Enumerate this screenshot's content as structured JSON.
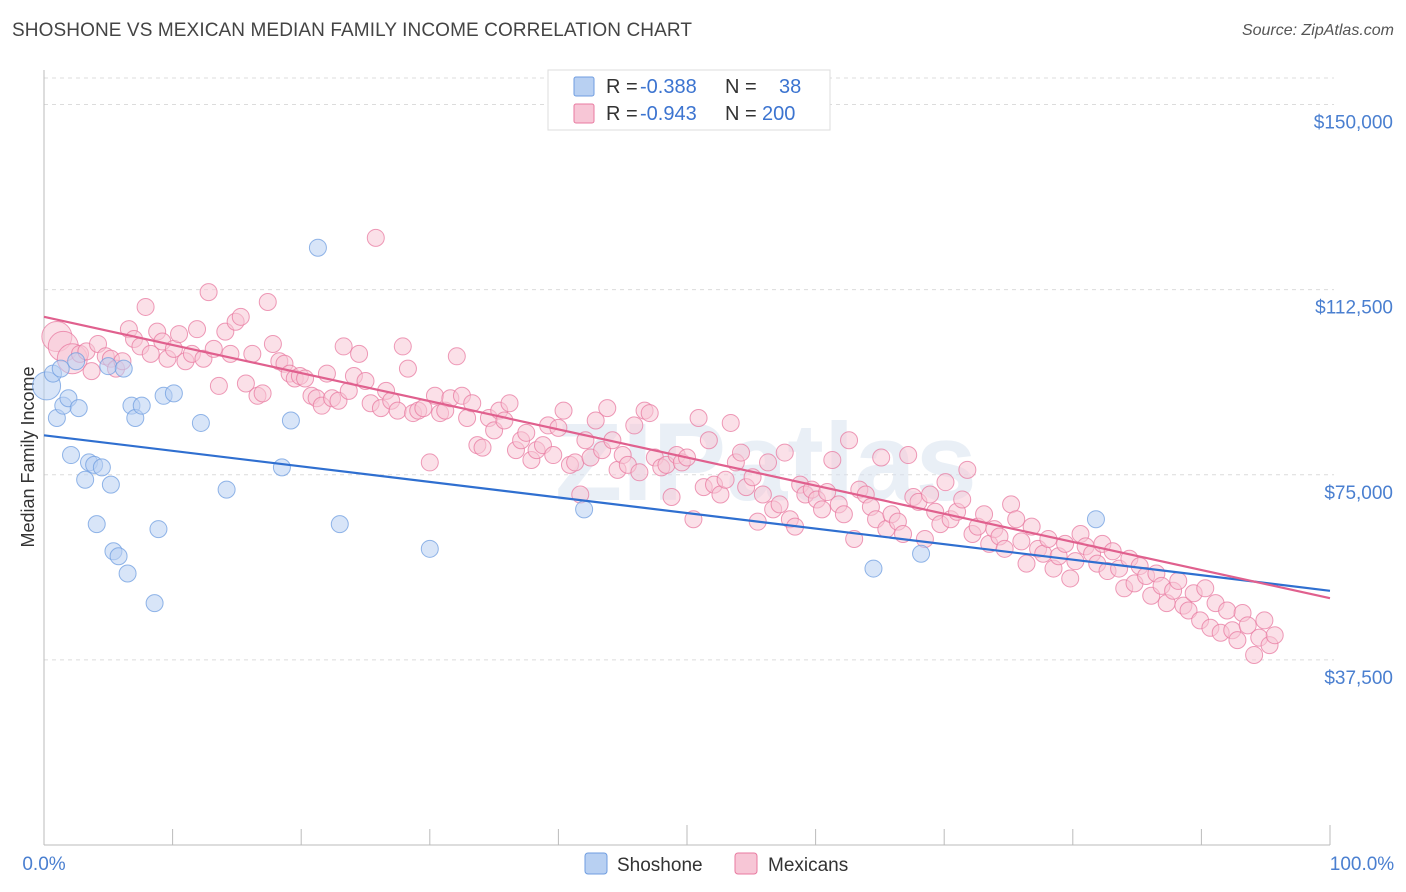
{
  "title": "SHOSHONE VS MEXICAN MEDIAN FAMILY INCOME CORRELATION CHART",
  "source": "Source: ZipAtlas.com",
  "watermark": "ZIPatlas",
  "chart_data": {
    "type": "scatter",
    "ylabel": "Median Family Income",
    "xlim": [
      0,
      100
    ],
    "ylim": [
      0,
      157000
    ],
    "x_tick_labels": [
      "0.0%",
      "100.0%"
    ],
    "y_ticks": [
      {
        "value": 37500,
        "label": "$37,500"
      },
      {
        "value": 75000,
        "label": "$75,000"
      },
      {
        "value": 112500,
        "label": "$112,500"
      },
      {
        "value": 150000,
        "label": "$150,000"
      }
    ],
    "grid": true,
    "legend_position": "top-center",
    "series": [
      {
        "name": "Shoshone",
        "color": "#6f9de0",
        "fill": "#b8d0f2",
        "r_label": "R =",
        "r_value": "-0.388",
        "n_label": "N =",
        "n_value": "38",
        "trend": [
          [
            0,
            83000
          ],
          [
            100,
            51500
          ]
        ],
        "points": [
          [
            0.2,
            93000
          ],
          [
            0.7,
            95500
          ],
          [
            1.0,
            86500
          ],
          [
            1.3,
            96500
          ],
          [
            1.5,
            89000
          ],
          [
            1.9,
            90500
          ],
          [
            2.1,
            79000
          ],
          [
            2.5,
            98000
          ],
          [
            2.7,
            88500
          ],
          [
            3.2,
            74000
          ],
          [
            3.5,
            77500
          ],
          [
            3.9,
            77000
          ],
          [
            4.1,
            65000
          ],
          [
            4.5,
            76500
          ],
          [
            5.0,
            97000
          ],
          [
            5.2,
            73000
          ],
          [
            5.4,
            59500
          ],
          [
            5.8,
            58500
          ],
          [
            6.2,
            96500
          ],
          [
            6.5,
            55000
          ],
          [
            6.8,
            89000
          ],
          [
            7.1,
            86500
          ],
          [
            7.6,
            89000
          ],
          [
            8.6,
            49000
          ],
          [
            8.9,
            64000
          ],
          [
            9.3,
            91000
          ],
          [
            10.1,
            91500
          ],
          [
            12.2,
            85500
          ],
          [
            14.2,
            72000
          ],
          [
            18.5,
            76500
          ],
          [
            19.2,
            86000
          ],
          [
            21.3,
            121000
          ],
          [
            23.0,
            65000
          ],
          [
            30.0,
            60000
          ],
          [
            42.0,
            68000
          ],
          [
            64.5,
            56000
          ],
          [
            68.2,
            59000
          ],
          [
            81.8,
            66000
          ]
        ]
      },
      {
        "name": "Mexicans",
        "color": "#e87aa0",
        "fill": "#f7c6d6",
        "r_label": "R =",
        "r_value": "-0.943",
        "n_label": "N =",
        "n_value": "200",
        "trend": [
          [
            0,
            107000
          ],
          [
            100,
            50000
          ]
        ],
        "points": [
          [
            1.0,
            103000
          ],
          [
            1.5,
            101000
          ],
          [
            2.2,
            98500
          ],
          [
            2.8,
            99500
          ],
          [
            3.3,
            100000
          ],
          [
            3.7,
            96000
          ],
          [
            4.2,
            101500
          ],
          [
            4.8,
            99000
          ],
          [
            5.2,
            98500
          ],
          [
            5.6,
            96500
          ],
          [
            6.1,
            98000
          ],
          [
            6.6,
            104500
          ],
          [
            7.0,
            102500
          ],
          [
            7.5,
            101000
          ],
          [
            7.9,
            109000
          ],
          [
            8.3,
            99500
          ],
          [
            8.8,
            104000
          ],
          [
            9.2,
            102000
          ],
          [
            9.6,
            98500
          ],
          [
            10.1,
            100500
          ],
          [
            10.5,
            103500
          ],
          [
            11.0,
            98000
          ],
          [
            11.5,
            99500
          ],
          [
            11.9,
            104500
          ],
          [
            12.4,
            98500
          ],
          [
            12.8,
            112000
          ],
          [
            13.2,
            100500
          ],
          [
            13.6,
            93000
          ],
          [
            14.1,
            104000
          ],
          [
            14.5,
            99500
          ],
          [
            14.9,
            106000
          ],
          [
            15.3,
            107000
          ],
          [
            15.7,
            93500
          ],
          [
            16.2,
            99500
          ],
          [
            16.6,
            91000
          ],
          [
            17.0,
            91500
          ],
          [
            17.4,
            110000
          ],
          [
            17.8,
            101500
          ],
          [
            18.3,
            98000
          ],
          [
            18.7,
            97500
          ],
          [
            19.1,
            95500
          ],
          [
            19.5,
            94500
          ],
          [
            19.9,
            95000
          ],
          [
            20.3,
            94500
          ],
          [
            20.8,
            91000
          ],
          [
            21.2,
            90500
          ],
          [
            21.6,
            89000
          ],
          [
            22.0,
            95500
          ],
          [
            22.4,
            90500
          ],
          [
            22.9,
            90000
          ],
          [
            23.3,
            101000
          ],
          [
            23.7,
            92000
          ],
          [
            24.1,
            95000
          ],
          [
            24.5,
            99500
          ],
          [
            25.0,
            94000
          ],
          [
            25.4,
            89500
          ],
          [
            25.8,
            123000
          ],
          [
            26.2,
            88500
          ],
          [
            26.6,
            92000
          ],
          [
            27.0,
            90000
          ],
          [
            27.5,
            88000
          ],
          [
            27.9,
            101000
          ],
          [
            28.3,
            96500
          ],
          [
            28.7,
            87500
          ],
          [
            29.1,
            88000
          ],
          [
            29.5,
            88500
          ],
          [
            30.0,
            77500
          ],
          [
            30.4,
            91000
          ],
          [
            30.8,
            87500
          ],
          [
            31.2,
            88000
          ],
          [
            31.6,
            90500
          ],
          [
            32.1,
            99000
          ],
          [
            32.5,
            91000
          ],
          [
            32.9,
            86500
          ],
          [
            33.3,
            89500
          ],
          [
            33.7,
            81000
          ],
          [
            34.1,
            80500
          ],
          [
            34.6,
            86500
          ],
          [
            35.0,
            84000
          ],
          [
            35.4,
            88000
          ],
          [
            35.8,
            86000
          ],
          [
            36.2,
            89500
          ],
          [
            36.7,
            80000
          ],
          [
            37.1,
            82000
          ],
          [
            37.5,
            83500
          ],
          [
            37.9,
            78000
          ],
          [
            38.3,
            80000
          ],
          [
            38.8,
            81000
          ],
          [
            39.2,
            85000
          ],
          [
            39.6,
            79000
          ],
          [
            40.0,
            84500
          ],
          [
            40.4,
            88000
          ],
          [
            40.9,
            77000
          ],
          [
            41.3,
            77500
          ],
          [
            41.7,
            71000
          ],
          [
            42.1,
            82000
          ],
          [
            42.5,
            78500
          ],
          [
            42.9,
            86000
          ],
          [
            43.4,
            80000
          ],
          [
            43.8,
            88500
          ],
          [
            44.2,
            82000
          ],
          [
            44.6,
            76000
          ],
          [
            45.0,
            79000
          ],
          [
            45.4,
            77000
          ],
          [
            45.9,
            85000
          ],
          [
            46.3,
            75500
          ],
          [
            46.7,
            88000
          ],
          [
            47.1,
            87500
          ],
          [
            47.5,
            78500
          ],
          [
            48.0,
            76500
          ],
          [
            48.4,
            77000
          ],
          [
            48.8,
            70500
          ],
          [
            49.2,
            79000
          ],
          [
            49.6,
            77500
          ],
          [
            50.0,
            78500
          ],
          [
            50.5,
            66000
          ],
          [
            50.9,
            86500
          ],
          [
            51.3,
            72500
          ],
          [
            51.7,
            82000
          ],
          [
            52.1,
            73000
          ],
          [
            52.6,
            71000
          ],
          [
            53.0,
            74000
          ],
          [
            53.4,
            85500
          ],
          [
            53.8,
            77500
          ],
          [
            54.2,
            79500
          ],
          [
            54.6,
            72500
          ],
          [
            55.1,
            74500
          ],
          [
            55.5,
            65500
          ],
          [
            55.9,
            71000
          ],
          [
            56.3,
            77500
          ],
          [
            56.7,
            68000
          ],
          [
            57.2,
            69000
          ],
          [
            57.6,
            79500
          ],
          [
            58.0,
            66000
          ],
          [
            58.4,
            64500
          ],
          [
            58.8,
            73000
          ],
          [
            59.2,
            71000
          ],
          [
            59.7,
            72000
          ],
          [
            60.1,
            70000
          ],
          [
            60.5,
            68000
          ],
          [
            60.9,
            71500
          ],
          [
            61.3,
            78000
          ],
          [
            61.8,
            69000
          ],
          [
            62.2,
            67000
          ],
          [
            62.6,
            82000
          ],
          [
            63.0,
            62000
          ],
          [
            63.4,
            72000
          ],
          [
            63.9,
            71000
          ],
          [
            64.3,
            68500
          ],
          [
            64.7,
            66000
          ],
          [
            65.1,
            78500
          ],
          [
            65.5,
            64000
          ],
          [
            65.9,
            67000
          ],
          [
            66.4,
            65500
          ],
          [
            66.8,
            63000
          ],
          [
            67.2,
            79000
          ],
          [
            67.6,
            70500
          ],
          [
            68.0,
            69500
          ],
          [
            68.5,
            62000
          ],
          [
            68.9,
            71000
          ],
          [
            69.3,
            67500
          ],
          [
            69.7,
            65000
          ],
          [
            70.1,
            73500
          ],
          [
            70.5,
            66000
          ],
          [
            71.0,
            67500
          ],
          [
            71.4,
            70000
          ],
          [
            71.8,
            76000
          ],
          [
            72.2,
            63000
          ],
          [
            72.6,
            64500
          ],
          [
            73.1,
            67000
          ],
          [
            73.5,
            61000
          ],
          [
            73.9,
            64000
          ],
          [
            74.3,
            62500
          ],
          [
            74.7,
            60000
          ],
          [
            75.2,
            69000
          ],
          [
            75.6,
            66000
          ],
          [
            76.0,
            61500
          ],
          [
            76.4,
            57000
          ],
          [
            76.8,
            64500
          ],
          [
            77.3,
            60000
          ],
          [
            77.7,
            59000
          ],
          [
            78.1,
            62000
          ],
          [
            78.5,
            56000
          ],
          [
            78.9,
            58500
          ],
          [
            79.4,
            61000
          ],
          [
            79.8,
            54000
          ],
          [
            80.2,
            57500
          ],
          [
            80.6,
            63000
          ],
          [
            81.0,
            60500
          ],
          [
            81.5,
            59000
          ],
          [
            81.9,
            57000
          ],
          [
            82.3,
            61000
          ],
          [
            82.7,
            55500
          ],
          [
            83.1,
            59500
          ],
          [
            83.6,
            56000
          ],
          [
            84.0,
            52000
          ],
          [
            84.4,
            58000
          ],
          [
            84.8,
            53000
          ],
          [
            85.2,
            56500
          ],
          [
            85.7,
            54500
          ],
          [
            86.1,
            50500
          ],
          [
            86.5,
            55000
          ],
          [
            86.9,
            52500
          ],
          [
            87.3,
            49000
          ],
          [
            87.8,
            51500
          ],
          [
            88.2,
            53500
          ],
          [
            88.6,
            48500
          ],
          [
            89.0,
            47500
          ],
          [
            89.4,
            51000
          ],
          [
            89.9,
            45500
          ],
          [
            90.3,
            52000
          ],
          [
            90.7,
            44000
          ],
          [
            91.1,
            49000
          ],
          [
            91.5,
            43000
          ],
          [
            92.0,
            47500
          ],
          [
            92.4,
            43500
          ],
          [
            92.8,
            41500
          ],
          [
            93.2,
            47000
          ],
          [
            93.6,
            44500
          ],
          [
            94.1,
            38500
          ],
          [
            94.5,
            42000
          ],
          [
            94.9,
            45500
          ],
          [
            95.3,
            40500
          ],
          [
            95.7,
            42500
          ]
        ]
      }
    ]
  }
}
